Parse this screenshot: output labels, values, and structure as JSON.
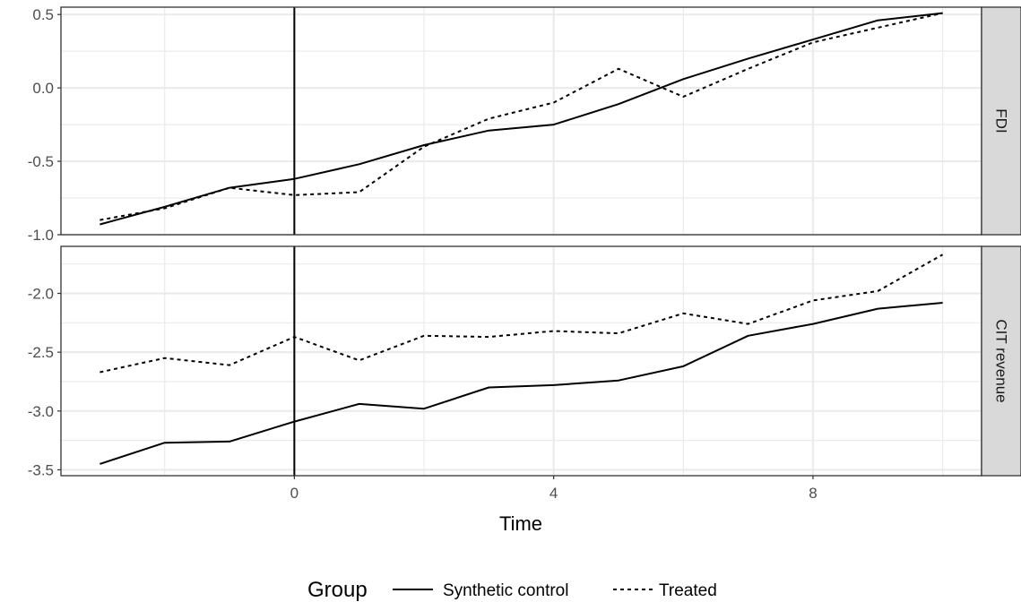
{
  "chart_data": {
    "type": "line",
    "xlabel": "Time",
    "x_ticks": [
      0,
      4,
      8
    ],
    "xlim": [
      -3.6,
      10.6
    ],
    "vline_x": 0,
    "legend": {
      "title": "Group",
      "position": "bottom",
      "entries": [
        {
          "name": "Synthetic control",
          "linetype": "solid"
        },
        {
          "name": "Treated",
          "linetype": "dashed"
        }
      ]
    },
    "colors": {
      "line": "#000000",
      "grid": "#ebebeb",
      "strip": "#d9d9d9",
      "border": "#333333"
    },
    "panels": [
      {
        "strip": "FDI",
        "ylim": [
          -1.0,
          0.55
        ],
        "y_ticks": [
          0.5,
          0.0,
          -0.5,
          -1.0
        ],
        "y_tick_labels": [
          "0.5",
          "0.0",
          "-0.5",
          "-1.0"
        ],
        "series": [
          {
            "name": "Synthetic control",
            "x": [
              -3,
              -2,
              -1,
              0,
              1,
              2,
              3,
              4,
              5,
              6,
              7,
              8,
              9,
              10
            ],
            "values": [
              -0.93,
              -0.81,
              -0.68,
              -0.62,
              -0.52,
              -0.39,
              -0.29,
              -0.25,
              -0.11,
              0.06,
              0.2,
              0.33,
              0.46,
              0.51
            ]
          },
          {
            "name": "Treated",
            "x": [
              -3,
              -2,
              -1,
              0,
              1,
              2,
              3,
              4,
              5,
              6,
              7,
              8,
              9,
              10
            ],
            "values": [
              -0.9,
              -0.82,
              -0.68,
              -0.73,
              -0.71,
              -0.4,
              -0.21,
              -0.1,
              0.13,
              -0.06,
              0.13,
              0.31,
              0.41,
              0.51
            ]
          }
        ]
      },
      {
        "strip": "CIT revenue",
        "ylim": [
          -3.55,
          -1.6
        ],
        "y_ticks": [
          -2.0,
          -2.5,
          -3.0,
          -3.5
        ],
        "y_tick_labels": [
          "-2.0",
          "-2.5",
          "-3.0",
          "-3.5"
        ],
        "series": [
          {
            "name": "Synthetic control",
            "x": [
              -3,
              -2,
              -1,
              0,
              1,
              2,
              3,
              4,
              5,
              6,
              7,
              8,
              9,
              10
            ],
            "values": [
              -3.45,
              -3.27,
              -3.26,
              -3.09,
              -2.94,
              -2.98,
              -2.8,
              -2.78,
              -2.74,
              -2.62,
              -2.36,
              -2.26,
              -2.13,
              -2.08
            ]
          },
          {
            "name": "Treated",
            "x": [
              -3,
              -2,
              -1,
              0,
              1,
              2,
              3,
              4,
              5,
              6,
              7,
              8,
              9,
              10
            ],
            "values": [
              -2.67,
              -2.55,
              -2.61,
              -2.37,
              -2.57,
              -2.36,
              -2.37,
              -2.32,
              -2.34,
              -2.17,
              -2.26,
              -2.06,
              -1.98,
              -1.67
            ]
          }
        ]
      }
    ]
  }
}
